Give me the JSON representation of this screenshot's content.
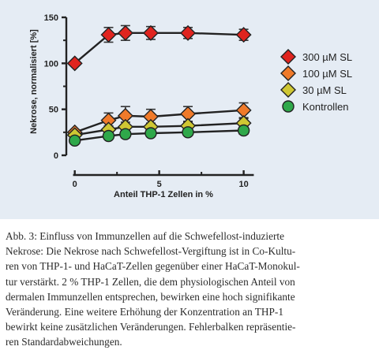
{
  "chart_data": {
    "type": "line",
    "xlabel": "Anteil THP-1 Zellen in %",
    "ylabel": "Nekrose, normalisiert [%]",
    "xlim": [
      -0.5,
      11
    ],
    "ylim": [
      0,
      150
    ],
    "xticks": [
      0,
      5,
      10
    ],
    "yticks": [
      0,
      50,
      100,
      150
    ],
    "legend_position": "right",
    "grid": false,
    "x": [
      0,
      2,
      3,
      4.5,
      6.7,
      10
    ],
    "series": [
      {
        "name": "300 µM SL",
        "marker": "diamond",
        "color": "#e0241f",
        "values": [
          100,
          131,
          133,
          133,
          133,
          131
        ],
        "errors": [
          0,
          8,
          8,
          7,
          6,
          6
        ]
      },
      {
        "name": "100 µM SL",
        "marker": "diamond",
        "color": "#f07a2a",
        "values": [
          25,
          38,
          43,
          42,
          45,
          49
        ],
        "errors": [
          3,
          8,
          10,
          8,
          8,
          8
        ]
      },
      {
        "name": "30 µM SL",
        "marker": "diamond",
        "color": "#cfc733",
        "values": [
          22,
          28,
          31,
          31,
          32,
          35
        ],
        "errors": [
          3,
          4,
          5,
          4,
          4,
          5
        ]
      },
      {
        "name": "Kontrollen",
        "marker": "circle",
        "color": "#2fa84a",
        "values": [
          16,
          21,
          23,
          24,
          25,
          27
        ],
        "errors": [
          3,
          3,
          4,
          3,
          3,
          4
        ]
      }
    ]
  },
  "caption": [
    "Abb. 3: Einfluss von Immunzellen auf die Schwefellost-induzierte",
    "Nekrose: Die Nekrose nach Schwefellost-Vergiftung ist in Co-Kultu-",
    "ren von THP-1- und HaCaT-Zellen gegenüber einer HaCaT-Monokul-",
    "tur verstärkt. 2 % THP-1 Zellen, die dem physiologischen Anteil von",
    "dermalen Immunzellen entsprechen,  bewirken eine hoch signifikante",
    "Veränderung. Eine weitere Erhöhung der Konzentration an THP-1",
    "bewirkt keine zusätzlichen Veränderungen. Fehlerbalken repräsentie-",
    "ren Standardabweichungen."
  ]
}
